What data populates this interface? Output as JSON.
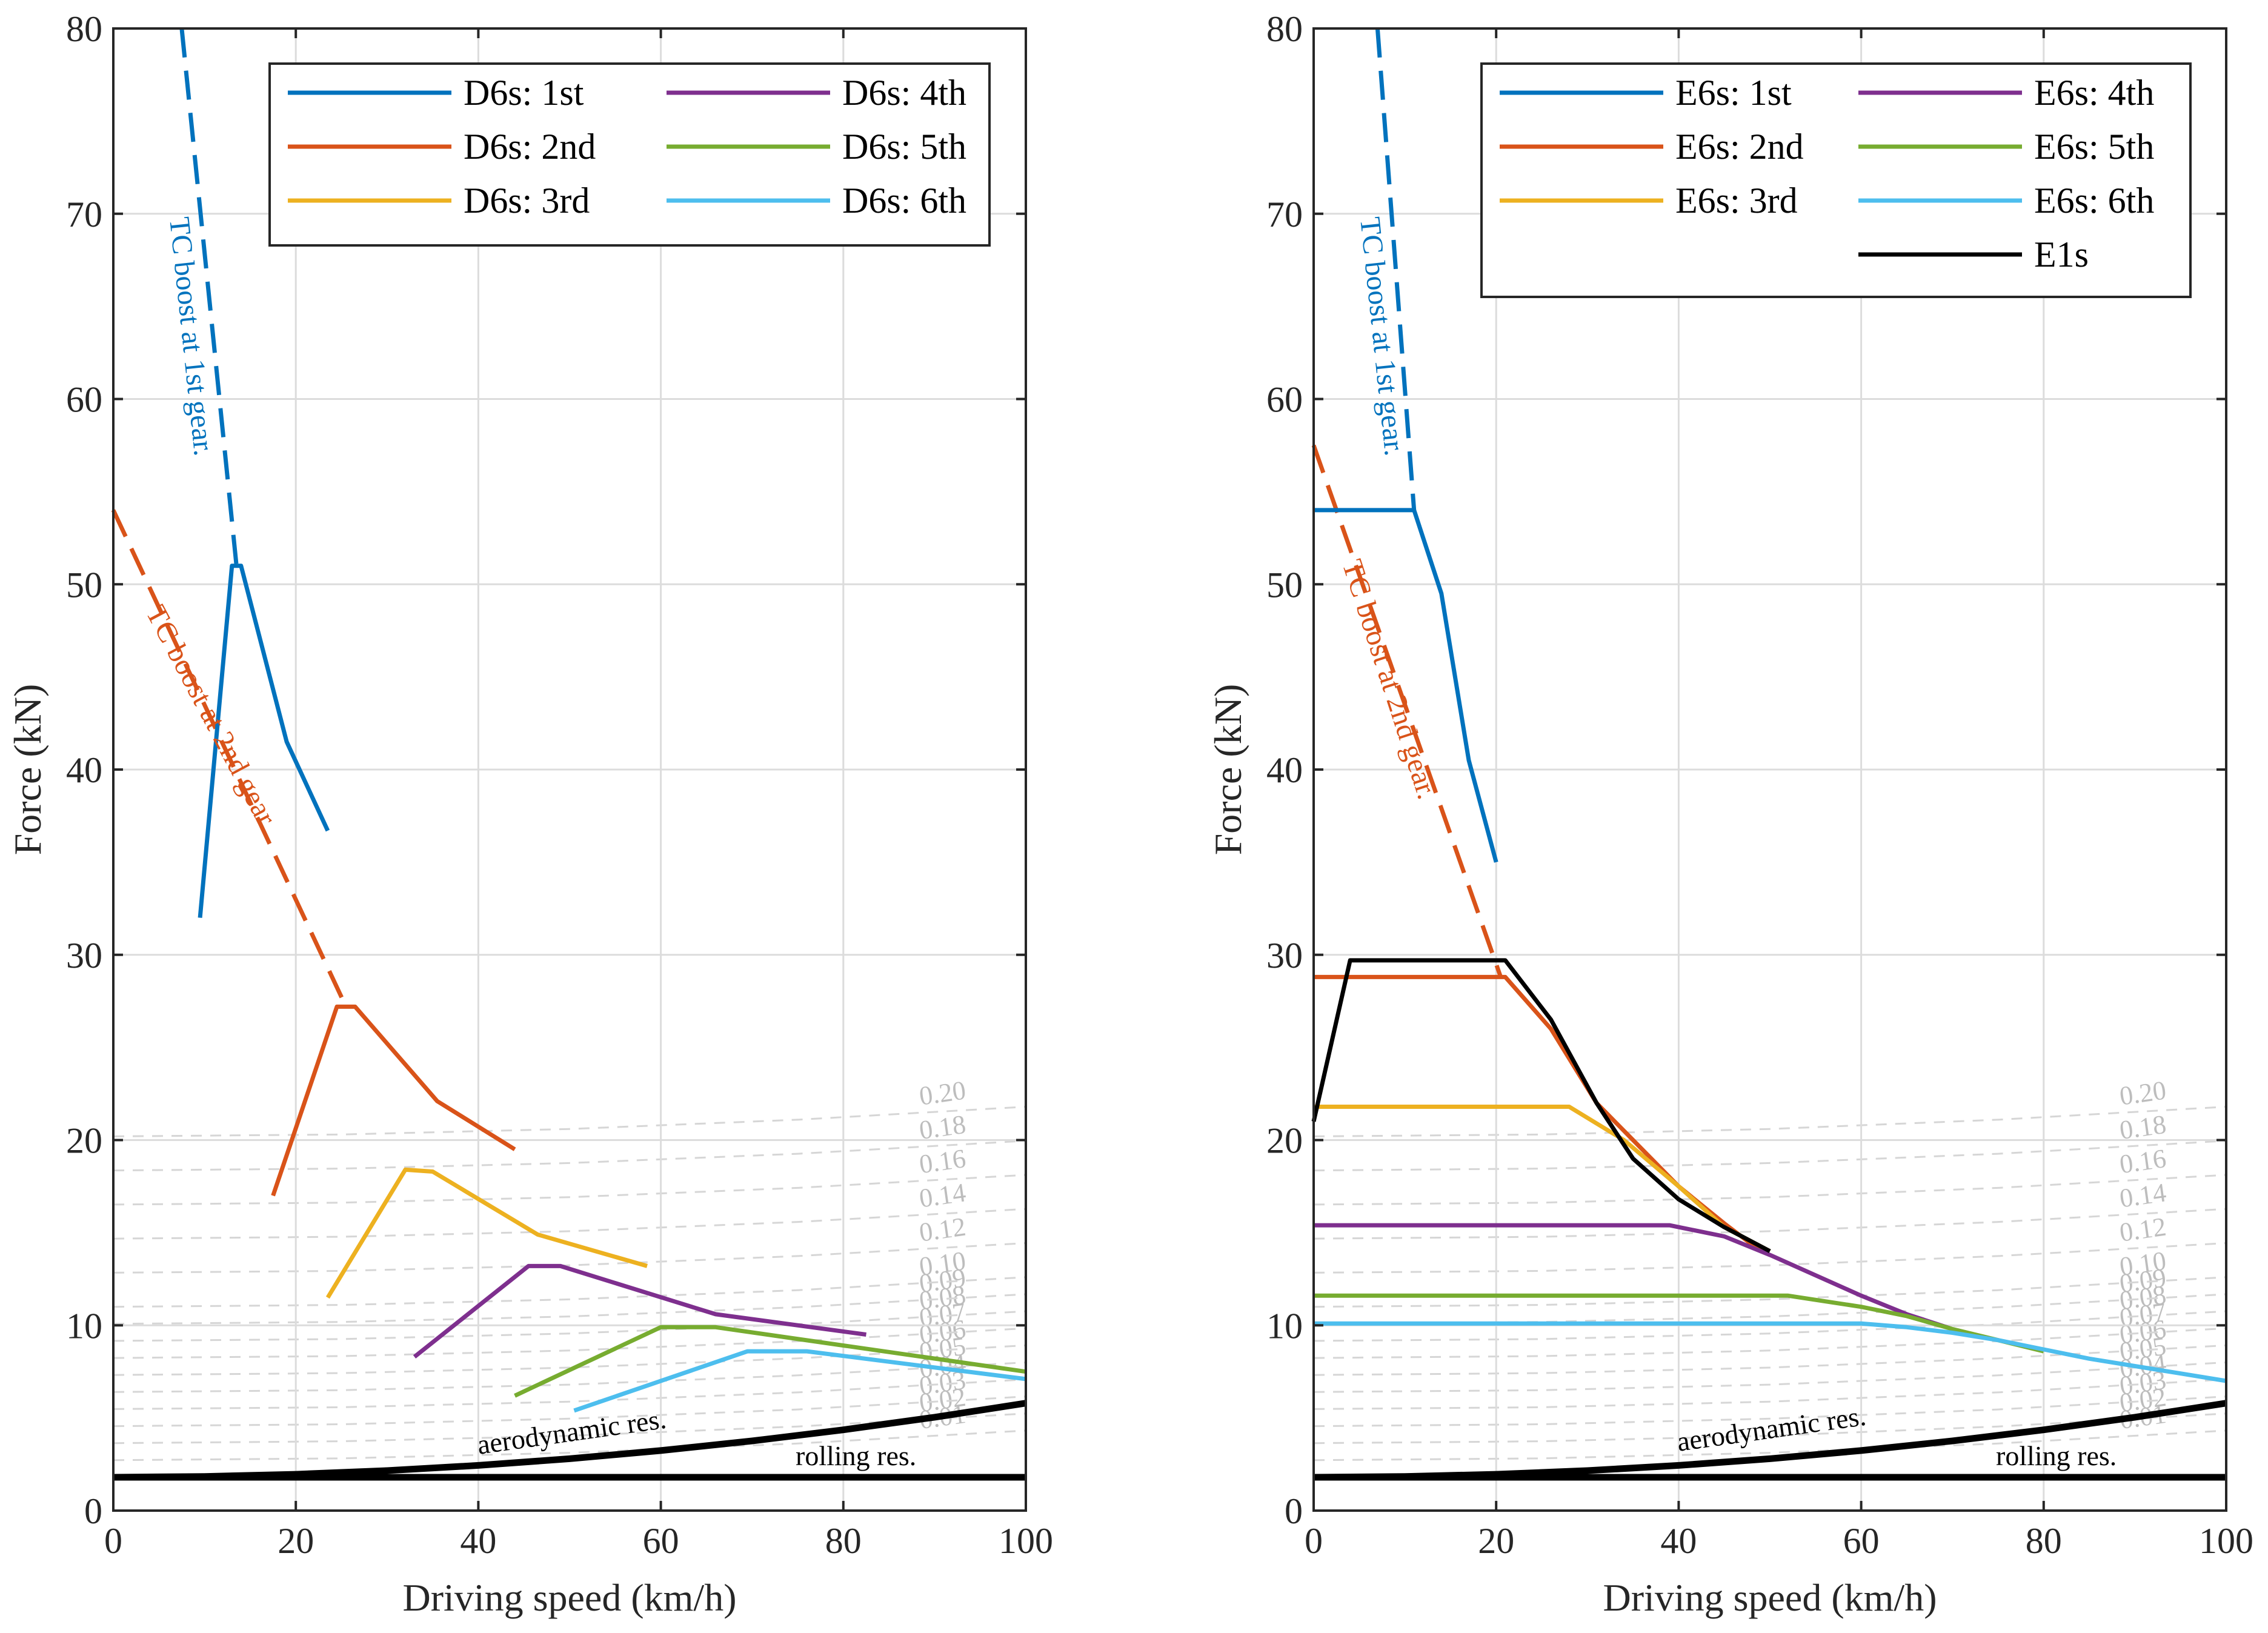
{
  "chart_data": [
    {
      "type": "line",
      "xlabel": "Driving speed (km/h)",
      "ylabel": "Force (kN)",
      "xlim": [
        0,
        100
      ],
      "ylim": [
        0,
        80
      ],
      "xticks": [
        0,
        20,
        40,
        60,
        80,
        100
      ],
      "yticks": [
        0,
        10,
        20,
        30,
        40,
        50,
        60,
        70,
        80
      ],
      "grid": true,
      "legend_position": "top-right",
      "legend_columns": 2,
      "series": [
        {
          "name": "D6s: 1st",
          "color": "#0072BD",
          "x": [
            9.5,
            13,
            14,
            19,
            23.5
          ],
          "y": [
            32,
            51,
            51,
            41.5,
            36.7
          ]
        },
        {
          "name": "D6s: 2nd",
          "color": "#D95319",
          "x": [
            17.5,
            24.5,
            26.5,
            35.5,
            44
          ],
          "y": [
            17,
            27.2,
            27.2,
            22.1,
            19.5
          ]
        },
        {
          "name": "D6s: 3rd",
          "color": "#EDB120",
          "x": [
            23.5,
            32,
            35,
            46.5,
            58.5
          ],
          "y": [
            11.5,
            18.4,
            18.3,
            14.9,
            13.2
          ]
        },
        {
          "name": "D6s: 4th",
          "color": "#7E2F8E",
          "x": [
            33,
            45.5,
            49,
            66,
            82.5
          ],
          "y": [
            8.3,
            13.2,
            13.2,
            10.6,
            9.5
          ]
        },
        {
          "name": "D6s: 5th",
          "color": "#77AC30",
          "x": [
            44,
            60,
            66,
            100
          ],
          "y": [
            6.2,
            9.9,
            9.9,
            7.5
          ]
        },
        {
          "name": "D6s: 6th",
          "color": "#4DBEEE",
          "x": [
            50.5,
            69.5,
            76,
            100
          ],
          "y": [
            5.4,
            8.6,
            8.6,
            7.1
          ]
        }
      ],
      "dashed_series": [
        {
          "name": "TC boost 1st",
          "color": "#0072BD",
          "x": [
            7.5,
            13.5
          ],
          "y": [
            80,
            51
          ]
        },
        {
          "name": "TC boost 2nd",
          "color": "#D95319",
          "x": [
            0,
            25.5
          ],
          "y": [
            54,
            27.2
          ]
        }
      ],
      "resistance": [
        {
          "name": "aerodynamic",
          "color": "#000000",
          "x": [
            0,
            10,
            20,
            30,
            40,
            50,
            60,
            70,
            80,
            90,
            100
          ],
          "y": [
            1.8,
            1.84,
            1.96,
            2.16,
            2.44,
            2.8,
            3.24,
            3.76,
            4.36,
            5.04,
            5.8
          ]
        },
        {
          "name": "rolling",
          "color": "#000000",
          "x": [
            0,
            100
          ],
          "y": [
            1.8,
            1.8
          ]
        }
      ],
      "slope_grades": [
        "0.01",
        "0.02",
        "0.03",
        "0.04",
        "0.05",
        "0.06",
        "0.07",
        "0.08",
        "0.09",
        "0.10",
        "0.12",
        "0.14",
        "0.16",
        "0.18",
        "0.20"
      ],
      "annotations": {
        "tc1": "TC boost at 1st gear.",
        "tc2": "TC boost at 2nd gear.",
        "aero": "aerodynamic res.",
        "rolling": "rolling res."
      }
    },
    {
      "type": "line",
      "xlabel": "Driving speed (km/h)",
      "ylabel": "Force (kN)",
      "xlim": [
        0,
        100
      ],
      "ylim": [
        0,
        80
      ],
      "xticks": [
        0,
        20,
        40,
        60,
        80,
        100
      ],
      "yticks": [
        0,
        10,
        20,
        30,
        40,
        50,
        60,
        70,
        80
      ],
      "grid": true,
      "legend_position": "top-right",
      "legend_columns": 2,
      "series": [
        {
          "name": "E6s: 1st",
          "color": "#0072BD",
          "x": [
            0,
            11,
            14,
            17,
            20
          ],
          "y": [
            54,
            54,
            49.5,
            40.5,
            35
          ]
        },
        {
          "name": "E6s: 2nd",
          "color": "#D95319",
          "x": [
            0,
            21,
            26,
            31,
            35,
            40,
            45,
            49
          ],
          "y": [
            28.8,
            28.8,
            26,
            22,
            20,
            17.5,
            15.5,
            14
          ]
        },
        {
          "name": "E6s: 3rd",
          "color": "#EDB120",
          "x": [
            0,
            28,
            34,
            40,
            45,
            50
          ],
          "y": [
            21.8,
            21.8,
            20,
            17.5,
            15.3,
            14
          ]
        },
        {
          "name": "E6s: 4th",
          "color": "#7E2F8E",
          "x": [
            0,
            39,
            45,
            50,
            55,
            60,
            65,
            70
          ],
          "y": [
            15.4,
            15.4,
            14.8,
            13.8,
            12.7,
            11.6,
            10.6,
            9.8
          ]
        },
        {
          "name": "E6s: 5th",
          "color": "#77AC30",
          "x": [
            0,
            52,
            60,
            65,
            70,
            75,
            80
          ],
          "y": [
            11.6,
            11.6,
            11,
            10.5,
            9.8,
            9.2,
            8.6
          ]
        },
        {
          "name": "E6s: 6th",
          "color": "#4DBEEE",
          "x": [
            0,
            60,
            65,
            70,
            75,
            80,
            85,
            90,
            95,
            100
          ],
          "y": [
            10.1,
            10.1,
            9.9,
            9.6,
            9.2,
            8.7,
            8.2,
            7.8,
            7.4,
            7
          ]
        },
        {
          "name": "E1s",
          "color": "#000000",
          "x": [
            0,
            4,
            21,
            26,
            31,
            35,
            40,
            45,
            50
          ],
          "y": [
            21,
            29.7,
            29.7,
            26.5,
            22,
            19,
            16.8,
            15.3,
            14
          ]
        }
      ],
      "dashed_series": [
        {
          "name": "TC boost 1st",
          "color": "#0072BD",
          "x": [
            7,
            11
          ],
          "y": [
            80,
            54
          ]
        },
        {
          "name": "TC boost 2nd",
          "color": "#D95319",
          "x": [
            0,
            20.5
          ],
          "y": [
            57.5,
            28.8
          ]
        }
      ],
      "resistance": [
        {
          "name": "aerodynamic",
          "color": "#000000",
          "x": [
            0,
            10,
            20,
            30,
            40,
            50,
            60,
            70,
            80,
            90,
            100
          ],
          "y": [
            1.8,
            1.84,
            1.96,
            2.16,
            2.44,
            2.8,
            3.24,
            3.76,
            4.36,
            5.04,
            5.8
          ]
        },
        {
          "name": "rolling",
          "color": "#000000",
          "x": [
            0,
            100
          ],
          "y": [
            1.8,
            1.8
          ]
        }
      ],
      "slope_grades": [
        "0.01",
        "0.02",
        "0.03",
        "0.04",
        "0.05",
        "0.06",
        "0.07",
        "0.08",
        "0.09",
        "0.10",
        "0.12",
        "0.14",
        "0.16",
        "0.18",
        "0.20"
      ],
      "annotations": {
        "tc1": "TC boost at 1st gear.",
        "tc2": "TC boost at 2nd gear.",
        "aero": "aerodynamic res.",
        "rolling": "rolling res."
      }
    }
  ]
}
